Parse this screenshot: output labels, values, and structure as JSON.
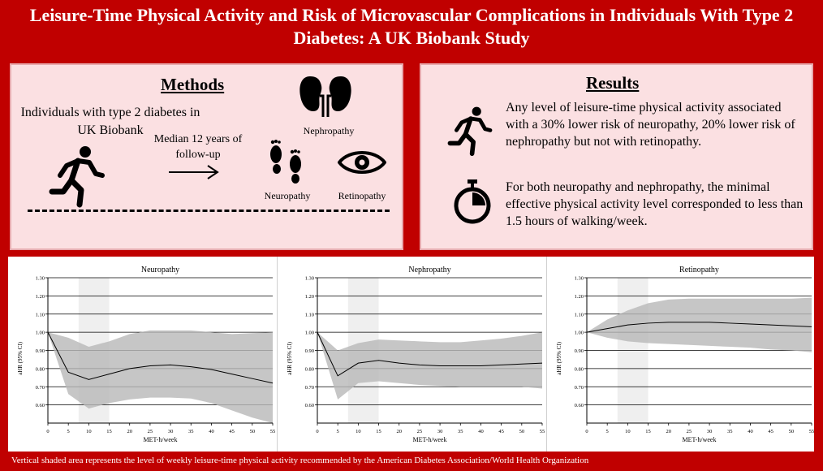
{
  "title": "Leisure-Time Physical Activity and Risk of Microvascular Complications in Individuals With Type 2 Diabetes: A UK Biobank Study",
  "methods": {
    "heading": "Methods",
    "population": "Individuals with type 2 diabetes in UK Biobank",
    "follow_up": "Median 12 years of follow-up",
    "outcomes": [
      "Nephropathy",
      "Neuropathy",
      "Retinopathy"
    ],
    "icons": [
      "running-person-icon",
      "kidneys-icon",
      "footprints-icon",
      "eye-icon",
      "arrow-right-icon"
    ]
  },
  "results": {
    "heading": "Results",
    "finding_1": "Any level of leisure-time physical activity associated with a 30% lower risk of neuropathy, 20% lower risk of nephropathy but not with retinopathy.",
    "finding_2": "For both neuropathy and nephropathy, the minimal effective physical activity level corresponded to less than 1.5 hours of walking/week.",
    "icons": [
      "running-person-icon",
      "stopwatch-icon"
    ]
  },
  "chart_data": [
    {
      "type": "line",
      "title": "Neuropathy",
      "xlabel": "MET-h/week",
      "ylabel": "aHR (95% CI)",
      "xlim": [
        0,
        55
      ],
      "ylim": [
        0.5,
        1.3
      ],
      "x_ticks": [
        "0",
        "5",
        "10",
        "15",
        "20",
        "25",
        "30",
        "35",
        "40",
        "45",
        "50",
        "55"
      ],
      "y_ticks": [
        "0.60",
        "0.70",
        "0.80",
        "0.90",
        "1.00",
        "1.10",
        "1.20",
        "1.30"
      ],
      "x": [
        0,
        5,
        10,
        15,
        20,
        25,
        30,
        35,
        40,
        45,
        50,
        55
      ],
      "y": [
        1.0,
        0.78,
        0.74,
        0.77,
        0.8,
        0.815,
        0.82,
        0.81,
        0.795,
        0.77,
        0.745,
        0.72
      ],
      "ci_upper": [
        1.0,
        0.97,
        0.92,
        0.95,
        0.99,
        1.01,
        1.01,
        1.01,
        1.0,
        0.99,
        0.995,
        1.0
      ],
      "ci_lower": [
        1.0,
        0.66,
        0.58,
        0.61,
        0.63,
        0.64,
        0.64,
        0.635,
        0.61,
        0.57,
        0.53,
        0.5
      ],
      "shaded_band": [
        7.5,
        15
      ]
    },
    {
      "type": "line",
      "title": "Nephropathy",
      "xlabel": "MET-h/week",
      "ylabel": "aHR (95% CI)",
      "xlim": [
        0,
        55
      ],
      "ylim": [
        0.5,
        1.3
      ],
      "x_ticks": [
        "0",
        "5",
        "10",
        "15",
        "20",
        "25",
        "30",
        "35",
        "40",
        "45",
        "50",
        "55"
      ],
      "y_ticks": [
        "0.60",
        "0.70",
        "0.80",
        "0.90",
        "1.00",
        "1.10",
        "1.20",
        "1.30"
      ],
      "x": [
        0,
        5,
        10,
        15,
        20,
        25,
        30,
        35,
        40,
        45,
        50,
        55
      ],
      "y": [
        1.0,
        0.76,
        0.83,
        0.845,
        0.83,
        0.82,
        0.815,
        0.815,
        0.815,
        0.82,
        0.825,
        0.83
      ],
      "ci_upper": [
        1.0,
        0.9,
        0.94,
        0.96,
        0.955,
        0.95,
        0.945,
        0.945,
        0.955,
        0.965,
        0.98,
        1.0
      ],
      "ci_lower": [
        1.0,
        0.63,
        0.72,
        0.73,
        0.72,
        0.71,
        0.705,
        0.7,
        0.7,
        0.7,
        0.7,
        0.69
      ],
      "shaded_band": [
        7.5,
        15
      ]
    },
    {
      "type": "line",
      "title": "Retinopathy",
      "xlabel": "MET-h/week",
      "ylabel": "aHR (95% CI)",
      "xlim": [
        0,
        55
      ],
      "ylim": [
        0.5,
        1.3
      ],
      "x_ticks": [
        "0",
        "5",
        "10",
        "15",
        "20",
        "25",
        "30",
        "35",
        "40",
        "45",
        "50",
        "55"
      ],
      "y_ticks": [
        "0.60",
        "0.70",
        "0.80",
        "0.90",
        "1.00",
        "1.10",
        "1.20",
        "1.30"
      ],
      "x": [
        0,
        5,
        10,
        15,
        20,
        25,
        30,
        35,
        40,
        45,
        50,
        55
      ],
      "y": [
        1.0,
        1.02,
        1.04,
        1.05,
        1.055,
        1.055,
        1.055,
        1.05,
        1.045,
        1.04,
        1.035,
        1.03
      ],
      "ci_upper": [
        1.0,
        1.07,
        1.12,
        1.16,
        1.18,
        1.185,
        1.185,
        1.185,
        1.185,
        1.185,
        1.185,
        1.19
      ],
      "ci_lower": [
        1.0,
        0.97,
        0.95,
        0.94,
        0.935,
        0.93,
        0.925,
        0.92,
        0.915,
        0.905,
        0.9,
        0.89
      ],
      "shaded_band": [
        7.5,
        15
      ]
    }
  ],
  "footnote": "Vertical shaded area represents the level of weekly leisure-time physical activity recommended by the American Diabetes Association/World Health Organization"
}
